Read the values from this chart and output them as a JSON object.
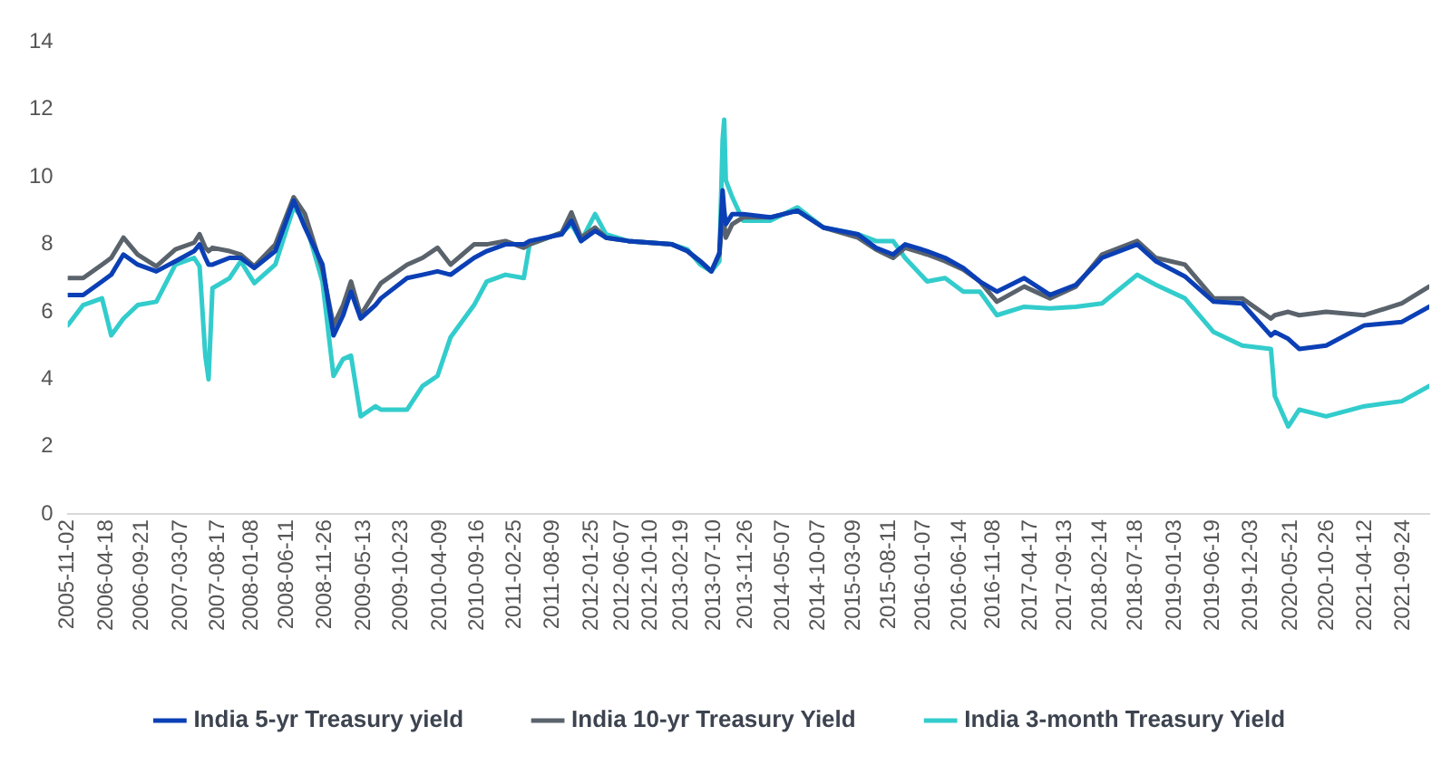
{
  "chart_data": {
    "type": "line",
    "x": [
      "2005-11-02",
      "2006-01-08",
      "2006-03-31",
      "2006-05-10",
      "2006-07-02",
      "2006-09-02",
      "2006-11-22",
      "2007-02-13",
      "2007-05-05",
      "2007-05-29",
      "2007-06-23",
      "2007-07-07",
      "2007-07-24",
      "2007-10-06",
      "2007-11-24",
      "2008-01-22",
      "2008-04-22",
      "2008-07-11",
      "2008-08-29",
      "2008-11-13",
      "2008-12-31",
      "2009-02-11",
      "2009-03-17",
      "2009-04-28",
      "2009-07-01",
      "2009-07-25",
      "2009-11-16",
      "2010-01-22",
      "2010-03-28",
      "2010-05-24",
      "2010-09-03",
      "2010-10-28",
      "2011-01-17",
      "2011-04-07",
      "2011-05-02",
      "2011-09-19",
      "2011-10-31",
      "2011-12-12",
      "2012-02-11",
      "2012-03-29",
      "2012-07-04",
      "2013-01-10",
      "2013-03-18",
      "2013-05-13",
      "2013-06-30",
      "2013-08-04",
      "2013-08-18",
      "2013-08-25",
      "2013-09-01",
      "2013-09-29",
      "2013-11-15",
      "2014-03-13",
      "2014-07-09",
      "2014-10-30",
      "2015-03-29",
      "2015-06-15",
      "2015-08-29",
      "2015-10-20",
      "2016-01-24",
      "2016-04-11",
      "2016-06-29",
      "2016-09-09",
      "2016-11-22",
      "2017-03-21",
      "2017-07-11",
      "2017-10-31",
      "2018-02-22",
      "2018-07-25",
      "2018-10-14",
      "2019-02-17",
      "2019-06-22",
      "2019-10-24",
      "2020-02-26",
      "2020-03-14",
      "2020-05-11",
      "2020-06-28",
      "2020-10-23",
      "2021-04-07",
      "2021-09-17",
      "2022-01-14"
    ],
    "series": [
      {
        "name": "India 5-yr Treasury yield",
        "color": "#0b3fb5",
        "values": [
          6.5,
          6.5,
          6.9,
          7.1,
          7.7,
          7.4,
          7.2,
          7.5,
          7.8,
          8.0,
          7.6,
          7.4,
          7.4,
          7.6,
          7.6,
          7.3,
          7.8,
          9.3,
          8.5,
          7.4,
          5.3,
          5.9,
          6.6,
          5.8,
          6.2,
          6.4,
          7.0,
          7.1,
          7.2,
          7.1,
          7.6,
          7.8,
          8.0,
          8.0,
          8.1,
          8.3,
          8.7,
          8.1,
          8.4,
          8.2,
          8.1,
          8.0,
          7.8,
          7.5,
          7.2,
          7.75,
          9.6,
          9.0,
          8.6,
          8.9,
          8.9,
          8.8,
          9.0,
          8.5,
          8.3,
          7.9,
          7.7,
          8.0,
          7.8,
          7.6,
          7.3,
          6.9,
          6.6,
          7.0,
          6.5,
          6.8,
          7.6,
          8.0,
          7.5,
          7.05,
          6.3,
          6.25,
          5.3,
          5.4,
          5.2,
          4.9,
          5.0,
          5.6,
          5.7,
          6.15
        ]
      },
      {
        "name": "India 10-yr Treasury Yield",
        "color": "#5a636c",
        "values": [
          7.0,
          7.0,
          7.4,
          7.6,
          8.2,
          7.7,
          7.35,
          7.85,
          8.05,
          8.3,
          7.9,
          7.8,
          7.9,
          7.8,
          7.7,
          7.35,
          8.0,
          9.4,
          8.9,
          7.25,
          5.6,
          6.2,
          6.9,
          5.9,
          6.6,
          6.85,
          7.4,
          7.6,
          7.9,
          7.4,
          8.0,
          8.0,
          8.1,
          7.9,
          8.0,
          8.35,
          8.95,
          8.2,
          8.5,
          8.2,
          8.1,
          8.0,
          7.8,
          7.5,
          7.2,
          7.7,
          8.9,
          8.6,
          8.2,
          8.6,
          8.8,
          8.8,
          9.0,
          8.5,
          8.2,
          7.85,
          7.6,
          7.9,
          7.7,
          7.5,
          7.25,
          6.9,
          6.3,
          6.75,
          6.4,
          6.75,
          7.7,
          8.1,
          7.6,
          7.4,
          6.4,
          6.4,
          5.8,
          5.9,
          6.0,
          5.9,
          6.0,
          5.9,
          6.25,
          6.75
        ]
      },
      {
        "name": "India 3-month Treasury Yield",
        "color": "#33cccc",
        "values": [
          5.6,
          6.2,
          6.4,
          5.3,
          5.8,
          6.2,
          6.3,
          7.4,
          7.6,
          7.35,
          4.7,
          4.0,
          6.7,
          7.0,
          7.5,
          6.85,
          7.4,
          9.1,
          8.7,
          6.9,
          4.1,
          4.6,
          4.7,
          2.9,
          3.2,
          3.1,
          3.1,
          3.8,
          4.1,
          5.25,
          6.2,
          6.9,
          7.1,
          7.0,
          8.0,
          8.35,
          8.6,
          8.1,
          8.9,
          8.3,
          8.1,
          8.0,
          7.85,
          7.4,
          7.2,
          7.5,
          11.1,
          11.7,
          9.9,
          9.4,
          8.7,
          8.7,
          9.1,
          8.5,
          8.3,
          8.1,
          8.1,
          7.6,
          6.9,
          7.0,
          6.6,
          6.6,
          5.9,
          6.15,
          6.1,
          6.15,
          6.25,
          7.1,
          6.8,
          6.4,
          5.4,
          5.0,
          4.9,
          3.5,
          2.6,
          3.1,
          2.9,
          3.2,
          3.35,
          3.8
        ]
      }
    ],
    "xlim": [
      "2005-11-02",
      "2022-01-14"
    ],
    "xticks": [
      "2005-11-02",
      "2006-04-18",
      "2006-09-21",
      "2007-03-07",
      "2007-08-17",
      "2008-01-08",
      "2008-06-11",
      "2008-11-26",
      "2009-05-13",
      "2009-10-23",
      "2010-04-09",
      "2010-09-16",
      "2011-02-25",
      "2011-08-09",
      "2012-01-25",
      "2012-06-07",
      "2012-10-10",
      "2013-02-19",
      "2013-07-10",
      "2013-11-26",
      "2014-05-07",
      "2014-10-07",
      "2015-03-09",
      "2015-08-11",
      "2016-01-07",
      "2016-06-14",
      "2016-11-08",
      "2017-04-17",
      "2017-09-13",
      "2018-02-14",
      "2018-07-18",
      "2019-01-03",
      "2019-06-19",
      "2019-12-03",
      "2020-05-21",
      "2020-10-26",
      "2021-04-12",
      "2021-09-24"
    ],
    "ylim": [
      0,
      14
    ],
    "yticks": [
      0,
      2,
      4,
      6,
      8,
      10,
      12,
      14
    ],
    "grid": false,
    "legend": "bottom",
    "marker": "none",
    "line_style": "solid"
  }
}
